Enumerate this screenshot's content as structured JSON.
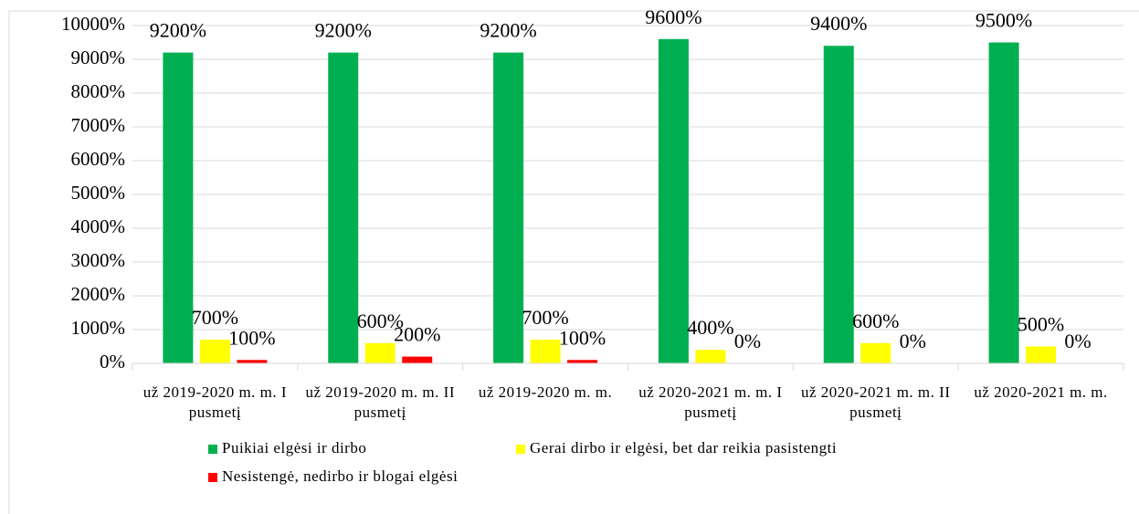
{
  "chart_data": {
    "type": "bar",
    "categories": [
      "už 2019-2020 m. m. I pusmetį",
      "už 2019-2020 m. m. II pusmetį",
      "už 2019-2020 m. m.",
      "už 2020-2021 m. m. I pusmetį",
      "už 2020-2021 m. m. II pusmetį",
      "už 2020-2021 m. m."
    ],
    "series": [
      {
        "name": "Puikiai elgėsi ir dirbo",
        "color": "#00b050",
        "values": [
          9200,
          9200,
          9200,
          9600,
          9400,
          9500
        ],
        "value_labels": [
          "9200%",
          "9200%",
          "9200%",
          "9600%",
          "9400%",
          "9500%"
        ]
      },
      {
        "name": "Gerai dirbo ir elgėsi, bet dar reikia pasistengti",
        "color": "#ffff00",
        "values": [
          700,
          600,
          700,
          400,
          600,
          500
        ],
        "value_labels": [
          "700%",
          "600%",
          "700%",
          "400%",
          "600%",
          "500%"
        ]
      },
      {
        "name": "Nesistengė, nedirbo ir  blogai elgėsi",
        "color": "#ff0000",
        "values": [
          100,
          200,
          100,
          0,
          0,
          0
        ],
        "value_labels": [
          "100%",
          "200%",
          "100%",
          "0%",
          "0%",
          "0%"
        ]
      }
    ],
    "ylim": [
      0,
      10000
    ],
    "yticks": [
      {
        "value": 0,
        "label": "0%"
      },
      {
        "value": 1000,
        "label": "1000%"
      },
      {
        "value": 2000,
        "label": "2000%"
      },
      {
        "value": 3000,
        "label": "3000%"
      },
      {
        "value": 4000,
        "label": "4000%"
      },
      {
        "value": 5000,
        "label": "5000%"
      },
      {
        "value": 6000,
        "label": "6000%"
      },
      {
        "value": 7000,
        "label": "7000%"
      },
      {
        "value": 8000,
        "label": "8000%"
      },
      {
        "value": 9000,
        "label": "9000%"
      },
      {
        "value": 10000,
        "label": "10000%"
      }
    ],
    "grid": true,
    "legend": "bottom"
  }
}
